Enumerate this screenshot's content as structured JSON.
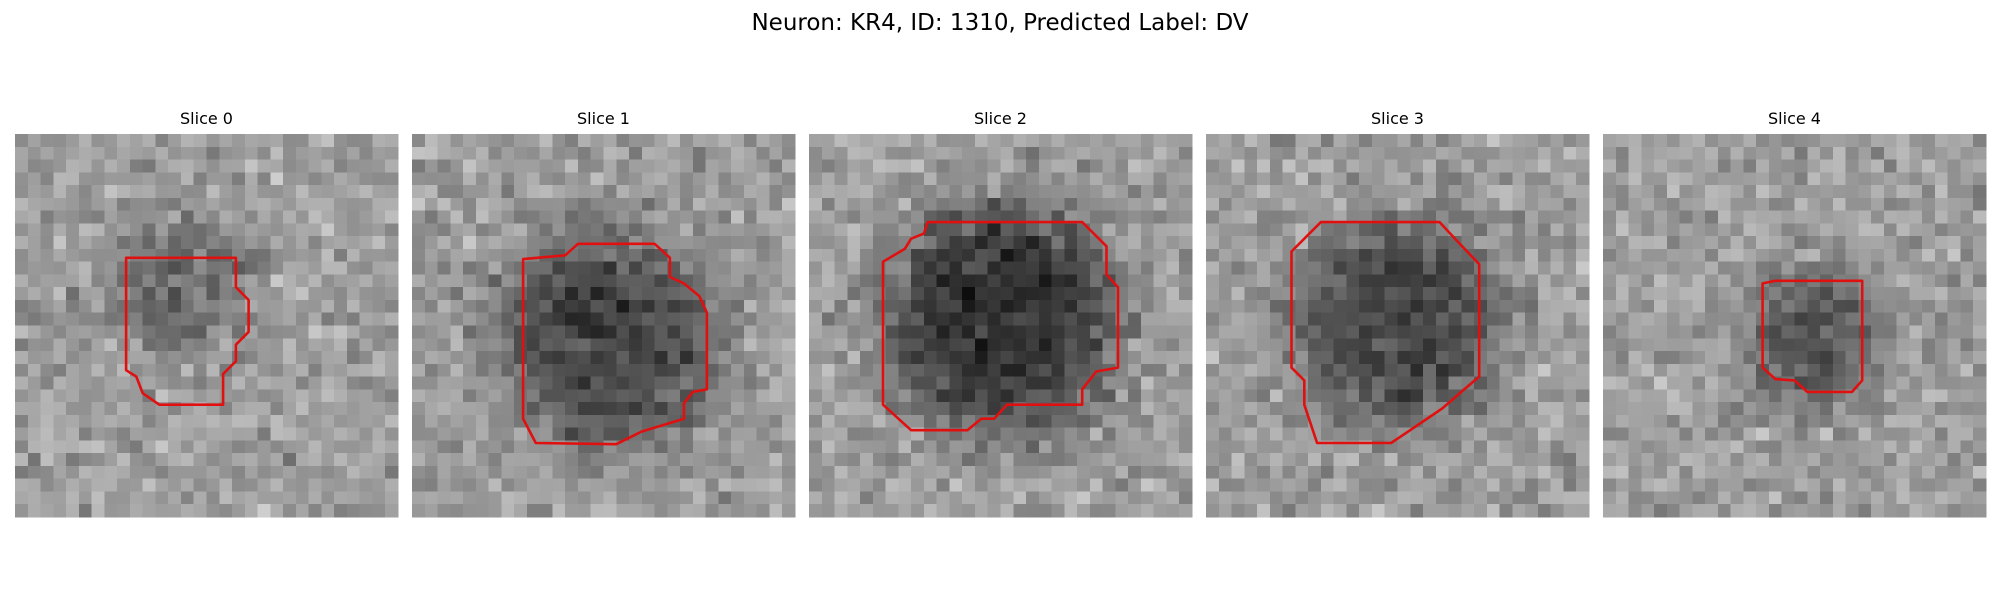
{
  "title": "Neuron: KR4, ID: 1310, Predicted Label: DV",
  "panels": [
    {
      "title": "Slice 0"
    },
    {
      "title": "Slice 1"
    },
    {
      "title": "Slice 2"
    },
    {
      "title": "Slice 3"
    },
    {
      "title": "Slice 4"
    }
  ]
}
